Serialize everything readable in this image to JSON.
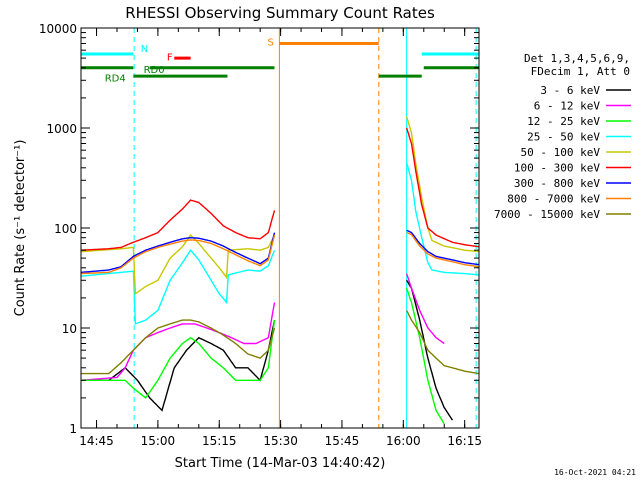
{
  "chart_data": {
    "type": "line",
    "title": "RHESSI Observing Summary Count Rates",
    "xlabel": "Start Time (14-Mar-03 14:40:42)",
    "ylabel": "Count Rate (s⁻¹ detector⁻¹)",
    "yscale": "log",
    "ylim": [
      1,
      10000
    ],
    "xlim_minutes_after_1440": [
      1.2,
      98.5
    ],
    "x_ticks": [
      {
        "label": "14:45",
        "m": 5
      },
      {
        "label": "15:00",
        "m": 20
      },
      {
        "label": "15:15",
        "m": 35
      },
      {
        "label": "15:30",
        "m": 50
      },
      {
        "label": "15:45",
        "m": 65
      },
      {
        "label": "16:00",
        "m": 80
      },
      {
        "label": "16:15",
        "m": 95
      }
    ],
    "y_ticks": [
      {
        "label": "1",
        "v": 1
      },
      {
        "label": "10",
        "v": 10
      },
      {
        "label": "100",
        "v": 100
      },
      {
        "label": "1000",
        "v": 1000
      },
      {
        "label": "10000",
        "v": 10000
      }
    ],
    "legend_header": [
      "Det 1,3,4,5,6,9,",
      "FDecim 1, Att 0"
    ],
    "legend_position": "right",
    "timestamp": "16-Oct-2021 04:21",
    "flag_labels": {
      "N": "N",
      "F": "F",
      "S": "S",
      "RD0": "RD0",
      "RD4": "RD4"
    },
    "series": [
      {
        "name": "3 - 6 keV",
        "color": "#000000",
        "pre": [
          [
            1.2,
            3
          ],
          [
            8,
            3
          ],
          [
            12,
            4
          ],
          [
            15,
            3
          ],
          [
            18,
            2
          ],
          [
            21,
            1.5
          ],
          [
            24,
            4
          ],
          [
            27,
            6
          ],
          [
            30,
            8
          ],
          [
            33,
            7
          ],
          [
            36,
            6
          ],
          [
            39,
            4
          ],
          [
            42,
            4
          ],
          [
            45,
            3
          ],
          [
            47,
            6
          ],
          [
            48.5,
            12
          ]
        ],
        "post": [
          [
            80.8,
            30
          ],
          [
            82,
            25
          ],
          [
            84,
            12
          ],
          [
            86,
            5
          ],
          [
            88,
            2.5
          ],
          [
            90,
            1.6
          ],
          [
            92,
            1.2
          ]
        ]
      },
      {
        "name": "6 - 12 keV",
        "color": "#ff00ff",
        "pre": [
          [
            1.2,
            3
          ],
          [
            10,
            3.2
          ],
          [
            12,
            4
          ],
          [
            14,
            6
          ],
          [
            17,
            8
          ],
          [
            20,
            9
          ],
          [
            23,
            10
          ],
          [
            26,
            11
          ],
          [
            29,
            11
          ],
          [
            32,
            10
          ],
          [
            35,
            9
          ],
          [
            38,
            8
          ],
          [
            41,
            7
          ],
          [
            44,
            7
          ],
          [
            47,
            8
          ],
          [
            48.5,
            18
          ]
        ],
        "post": [
          [
            80.8,
            35
          ],
          [
            82,
            25
          ],
          [
            84,
            15
          ],
          [
            86,
            10
          ],
          [
            88,
            8
          ],
          [
            90,
            7
          ]
        ]
      },
      {
        "name": "12 - 25 keV",
        "color": "#00ff00",
        "pre": [
          [
            1.2,
            3
          ],
          [
            12,
            3
          ],
          [
            14,
            2.5
          ],
          [
            17,
            2
          ],
          [
            20,
            3
          ],
          [
            23,
            5
          ],
          [
            26,
            7
          ],
          [
            28,
            8
          ],
          [
            30,
            7
          ],
          [
            33,
            5
          ],
          [
            36,
            4
          ],
          [
            39,
            3
          ],
          [
            42,
            3
          ],
          [
            45,
            3
          ],
          [
            47,
            4
          ],
          [
            48.5,
            12
          ]
        ],
        "post": [
          [
            80.8,
            25
          ],
          [
            82,
            18
          ],
          [
            84,
            8
          ],
          [
            86,
            3
          ],
          [
            88,
            1.5
          ],
          [
            90,
            1.1
          ]
        ]
      },
      {
        "name": "25 - 50 keV",
        "color": "#00ffff",
        "pre": [
          [
            1.2,
            33
          ],
          [
            11,
            36
          ],
          [
            14,
            37
          ],
          [
            14.5,
            11
          ],
          [
            17,
            12
          ],
          [
            20,
            15
          ],
          [
            23,
            30
          ],
          [
            26,
            45
          ],
          [
            28,
            60
          ],
          [
            30,
            48
          ],
          [
            33,
            30
          ],
          [
            35,
            22
          ],
          [
            36.8,
            18
          ],
          [
            37.2,
            34
          ],
          [
            42,
            38
          ],
          [
            45,
            37
          ],
          [
            47,
            42
          ],
          [
            48.5,
            60
          ]
        ],
        "post": [
          [
            80.8,
            450
          ],
          [
            82,
            300
          ],
          [
            83,
            150
          ],
          [
            84.5,
            80
          ],
          [
            86,
            45
          ],
          [
            87,
            38
          ],
          [
            90,
            36
          ],
          [
            95,
            35
          ],
          [
            98.5,
            34
          ]
        ]
      },
      {
        "name": "50 - 100 keV",
        "color": "#c8c800",
        "pre": [
          [
            1.2,
            58
          ],
          [
            11,
            62
          ],
          [
            14,
            64
          ],
          [
            14.5,
            22
          ],
          [
            17,
            26
          ],
          [
            20,
            30
          ],
          [
            23,
            50
          ],
          [
            26,
            65
          ],
          [
            28,
            85
          ],
          [
            30,
            70
          ],
          [
            33,
            50
          ],
          [
            35,
            40
          ],
          [
            36.8,
            32
          ],
          [
            37.2,
            60
          ],
          [
            42,
            62
          ],
          [
            45,
            60
          ],
          [
            47,
            64
          ],
          [
            48.5,
            85
          ]
        ],
        "post": [
          [
            80.8,
            1300
          ],
          [
            82,
            900
          ],
          [
            83,
            450
          ],
          [
            84.5,
            200
          ],
          [
            86,
            100
          ],
          [
            87,
            75
          ],
          [
            90,
            66
          ],
          [
            95,
            60
          ],
          [
            98.5,
            58
          ]
        ]
      },
      {
        "name": "100 - 300 keV",
        "color": "#ff0000",
        "pre": [
          [
            1.2,
            60
          ],
          [
            8,
            62
          ],
          [
            11,
            64
          ],
          [
            14,
            72
          ],
          [
            17,
            80
          ],
          [
            20,
            90
          ],
          [
            23,
            120
          ],
          [
            26,
            155
          ],
          [
            28,
            190
          ],
          [
            30,
            180
          ],
          [
            33,
            140
          ],
          [
            36,
            105
          ],
          [
            39,
            90
          ],
          [
            42,
            80
          ],
          [
            45,
            78
          ],
          [
            47,
            90
          ],
          [
            48.5,
            150
          ]
        ],
        "post": [
          [
            80.8,
            1000
          ],
          [
            82,
            700
          ],
          [
            83,
            380
          ],
          [
            84.5,
            170
          ],
          [
            86,
            100
          ],
          [
            88,
            85
          ],
          [
            92,
            72
          ],
          [
            95,
            68
          ],
          [
            98.5,
            65
          ]
        ]
      },
      {
        "name": "300 - 800 keV",
        "color": "#0000ff",
        "pre": [
          [
            1.2,
            36
          ],
          [
            8,
            38
          ],
          [
            11,
            41
          ],
          [
            14,
            52
          ],
          [
            17,
            60
          ],
          [
            20,
            66
          ],
          [
            23,
            72
          ],
          [
            26,
            78
          ],
          [
            28,
            80
          ],
          [
            30,
            79
          ],
          [
            33,
            74
          ],
          [
            36,
            66
          ],
          [
            39,
            57
          ],
          [
            42,
            50
          ],
          [
            45,
            44
          ],
          [
            47,
            50
          ],
          [
            48.5,
            90
          ]
        ],
        "post": [
          [
            80.8,
            95
          ],
          [
            82,
            90
          ],
          [
            84,
            70
          ],
          [
            86,
            58
          ],
          [
            88,
            52
          ],
          [
            92,
            48
          ],
          [
            95,
            45
          ],
          [
            98.5,
            43
          ]
        ]
      },
      {
        "name": "800 - 7000 keV",
        "color": "#ff8000",
        "pre": [
          [
            1.2,
            35
          ],
          [
            8,
            36
          ],
          [
            11,
            40
          ],
          [
            14,
            50
          ],
          [
            17,
            58
          ],
          [
            20,
            64
          ],
          [
            23,
            69
          ],
          [
            26,
            74
          ],
          [
            28,
            76
          ],
          [
            30,
            75
          ],
          [
            33,
            70
          ],
          [
            36,
            62
          ],
          [
            39,
            54
          ],
          [
            42,
            47
          ],
          [
            45,
            42
          ],
          [
            47,
            48
          ],
          [
            48.5,
            85
          ]
        ],
        "post": [
          [
            80.8,
            90
          ],
          [
            82,
            86
          ],
          [
            84,
            66
          ],
          [
            86,
            55
          ],
          [
            88,
            50
          ],
          [
            92,
            46
          ],
          [
            95,
            43
          ],
          [
            98.5,
            41
          ]
        ]
      },
      {
        "name": "7000 - 15000 keV",
        "color": "#808000",
        "pre": [
          [
            1.2,
            3.5
          ],
          [
            8,
            3.5
          ],
          [
            11,
            4.5
          ],
          [
            14,
            6
          ],
          [
            17,
            8
          ],
          [
            20,
            10
          ],
          [
            23,
            11
          ],
          [
            26,
            12
          ],
          [
            28,
            12
          ],
          [
            30,
            11.5
          ],
          [
            33,
            10
          ],
          [
            36,
            8.5
          ],
          [
            39,
            7
          ],
          [
            42,
            5.5
          ],
          [
            45,
            5
          ],
          [
            47,
            6
          ],
          [
            48.5,
            10
          ]
        ],
        "post": [
          [
            80.8,
            15
          ],
          [
            82,
            12
          ],
          [
            84,
            9
          ],
          [
            86,
            6
          ],
          [
            88,
            5
          ],
          [
            90,
            4.2
          ],
          [
            92,
            4
          ],
          [
            95,
            3.7
          ],
          [
            98.5,
            3.5
          ]
        ]
      }
    ],
    "flags": [
      {
        "name": "N",
        "color": "#00ffff",
        "level": 5500,
        "segments": [
          [
            1.2,
            14
          ],
          [
            84.5,
            98.5
          ]
        ]
      },
      {
        "name": "F",
        "color": "#ff0000",
        "level": 5000,
        "segments": [
          [
            24,
            28
          ]
        ]
      },
      {
        "name": "S",
        "color": "#ff8000",
        "level": 7000,
        "segments": [
          [
            49.7,
            74
          ]
        ]
      },
      {
        "name": "RD0",
        "color": "#008000",
        "level": 4000,
        "segments": [
          [
            1.2,
            14
          ],
          [
            18,
            48.5
          ],
          [
            85,
            98.5
          ]
        ]
      },
      {
        "name": "RD4",
        "color": "#008000",
        "level": 3300,
        "segments": [
          [
            14,
            37
          ],
          [
            74,
            84.5
          ]
        ]
      }
    ],
    "vlines": [
      {
        "m": 1.2,
        "color": "#00ffff",
        "style": "solid"
      },
      {
        "m": 14.2,
        "color": "#00ffff",
        "style": "dashed"
      },
      {
        "m": 49.7,
        "color": "#ff8000",
        "style": "solid"
      },
      {
        "m": 74,
        "color": "#ff8000",
        "style": "dashed"
      },
      {
        "m": 80.8,
        "color": "#00ffff",
        "style": "solid"
      },
      {
        "m": 97.8,
        "color": "#00ffff",
        "style": "dashed"
      }
    ]
  }
}
